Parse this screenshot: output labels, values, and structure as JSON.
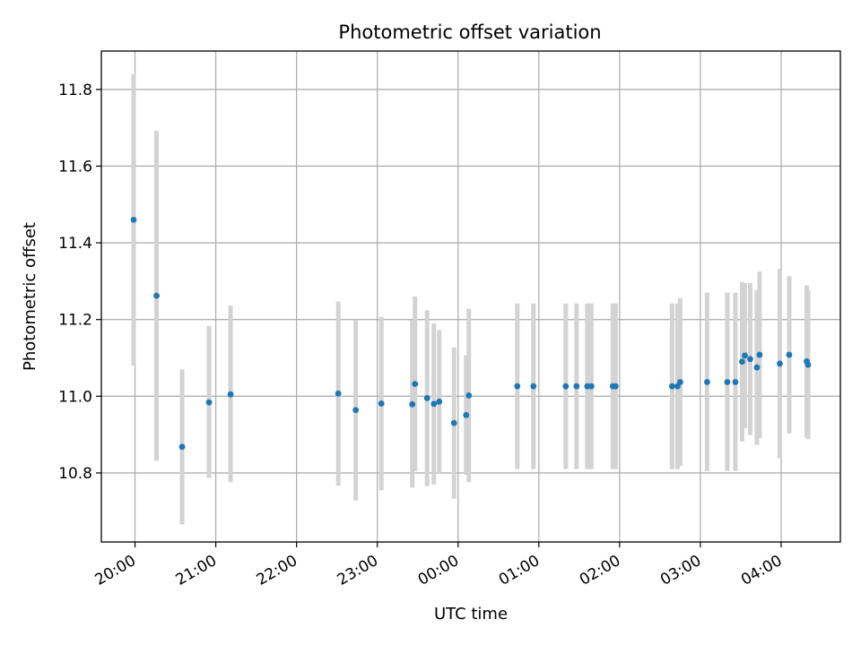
{
  "chart_data": {
    "type": "scatter",
    "title": "Photometric offset variation",
    "xlabel": "UTC time",
    "ylabel": "Photometric offset",
    "x_unit": "UTC time (hours, labeled HH:MM)",
    "xlim": [
      "19:35",
      "04:44"
    ],
    "ylim": [
      10.62,
      11.9
    ],
    "xticks": [
      "20:00",
      "21:00",
      "22:00",
      "23:00",
      "00:00",
      "01:00",
      "02:00",
      "03:00",
      "04:00"
    ],
    "yticks": [
      "10.8",
      "11.0",
      "11.2",
      "11.4",
      "11.6",
      "11.8"
    ],
    "grid": true,
    "error_bars": true,
    "colors": {
      "marker": "#1f77b4",
      "errorbar": "#d3d3d3",
      "grid": "#b0b0b0",
      "axes": "#000000"
    },
    "points": [
      {
        "t": "19:59",
        "y": 11.46,
        "lo": 11.08,
        "hi": 11.84
      },
      {
        "t": "20:16",
        "y": 11.262,
        "lo": 10.832,
        "hi": 11.692
      },
      {
        "t": "20:35",
        "y": 10.868,
        "lo": 10.666,
        "hi": 11.07
      },
      {
        "t": "20:55",
        "y": 10.984,
        "lo": 10.787,
        "hi": 11.183
      },
      {
        "t": "21:11",
        "y": 11.005,
        "lo": 10.776,
        "hi": 11.236
      },
      {
        "t": "22:31",
        "y": 11.007,
        "lo": 10.767,
        "hi": 11.247
      },
      {
        "t": "22:44",
        "y": 10.964,
        "lo": 10.728,
        "hi": 11.2
      },
      {
        "t": "23:03",
        "y": 10.981,
        "lo": 10.755,
        "hi": 11.207
      },
      {
        "t": "23:26",
        "y": 10.979,
        "lo": 10.762,
        "hi": 11.199
      },
      {
        "t": "23:28",
        "y": 11.032,
        "lo": 10.805,
        "hi": 11.26
      },
      {
        "t": "23:37",
        "y": 10.995,
        "lo": 10.766,
        "hi": 11.224
      },
      {
        "t": "23:42",
        "y": 10.98,
        "lo": 10.77,
        "hi": 11.19
      },
      {
        "t": "23:46",
        "y": 10.986,
        "lo": 10.8,
        "hi": 11.172
      },
      {
        "t": "23:57",
        "y": 10.93,
        "lo": 10.733,
        "hi": 11.127
      },
      {
        "t": "00:06",
        "y": 10.951,
        "lo": 10.795,
        "hi": 11.107
      },
      {
        "t": "00:08",
        "y": 11.002,
        "lo": 10.776,
        "hi": 11.228
      },
      {
        "t": "00:44",
        "y": 11.026,
        "lo": 10.81,
        "hi": 11.242
      },
      {
        "t": "00:56",
        "y": 11.026,
        "lo": 10.81,
        "hi": 11.242
      },
      {
        "t": "01:20",
        "y": 11.026,
        "lo": 10.81,
        "hi": 11.242
      },
      {
        "t": "01:28",
        "y": 11.026,
        "lo": 10.81,
        "hi": 11.242
      },
      {
        "t": "01:36",
        "y": 11.026,
        "lo": 10.81,
        "hi": 11.242
      },
      {
        "t": "01:39",
        "y": 11.026,
        "lo": 10.81,
        "hi": 11.242
      },
      {
        "t": "01:55",
        "y": 11.026,
        "lo": 10.81,
        "hi": 11.242
      },
      {
        "t": "01:57",
        "y": 11.026,
        "lo": 10.81,
        "hi": 11.242
      },
      {
        "t": "02:39",
        "y": 11.026,
        "lo": 10.81,
        "hi": 11.242
      },
      {
        "t": "02:43",
        "y": 11.026,
        "lo": 10.81,
        "hi": 11.242
      },
      {
        "t": "02:45",
        "y": 11.037,
        "lo": 10.818,
        "hi": 11.256
      },
      {
        "t": "03:05",
        "y": 11.037,
        "lo": 10.805,
        "hi": 11.27
      },
      {
        "t": "03:20",
        "y": 11.037,
        "lo": 10.805,
        "hi": 11.27
      },
      {
        "t": "03:26",
        "y": 11.037,
        "lo": 10.805,
        "hi": 11.27
      },
      {
        "t": "03:31",
        "y": 11.09,
        "lo": 10.882,
        "hi": 11.298
      },
      {
        "t": "03:33",
        "y": 11.106,
        "lo": 10.917,
        "hi": 11.295
      },
      {
        "t": "03:37",
        "y": 11.097,
        "lo": 10.899,
        "hi": 11.295
      },
      {
        "t": "03:42",
        "y": 11.075,
        "lo": 10.873,
        "hi": 11.277
      },
      {
        "t": "03:44",
        "y": 11.108,
        "lo": 10.891,
        "hi": 11.325
      },
      {
        "t": "03:59",
        "y": 11.085,
        "lo": 10.838,
        "hi": 11.332
      },
      {
        "t": "04:06",
        "y": 11.108,
        "lo": 10.903,
        "hi": 11.313
      },
      {
        "t": "04:19",
        "y": 11.091,
        "lo": 10.893,
        "hi": 11.289
      },
      {
        "t": "04:20",
        "y": 11.082,
        "lo": 10.888,
        "hi": 11.276
      }
    ]
  }
}
